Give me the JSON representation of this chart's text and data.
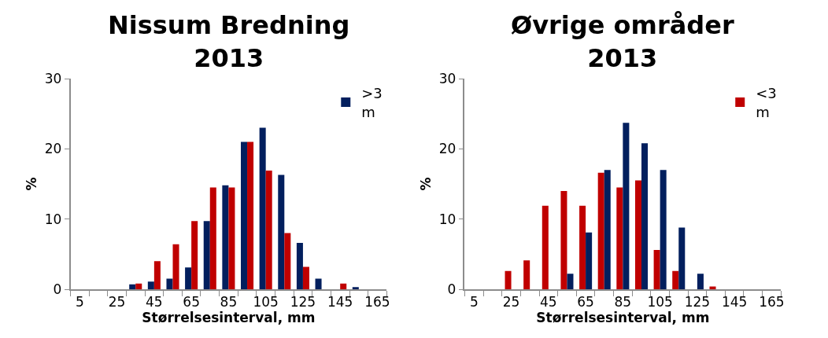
{
  "chart_data": [
    {
      "type": "bar",
      "title": "Nissum Bredning 2013",
      "xlabel": "Størrelsesinterval, mm",
      "ylabel": "%",
      "categories": [
        "5",
        null,
        "25",
        null,
        "45",
        null,
        "65",
        null,
        "85",
        null,
        "105",
        null,
        "125",
        null,
        "145",
        null,
        "165"
      ],
      "series": [
        {
          "name": ">3 m",
          "color": "#021f5e",
          "values": [
            0,
            0,
            0,
            0.7,
            1.1,
            1.5,
            3.1,
            9.7,
            14.8,
            21.0,
            23.0,
            16.3,
            6.6,
            1.5,
            0,
            0.3,
            0
          ]
        },
        {
          "color": "#c00000",
          "values": [
            0,
            0,
            0,
            0.8,
            4.0,
            6.4,
            9.7,
            14.5,
            14.5,
            21.0,
            16.9,
            8.0,
            3.2,
            0,
            0.8,
            0,
            0
          ]
        }
      ],
      "ylim": [
        0,
        30
      ],
      "yticks": [
        0,
        10,
        20,
        30
      ],
      "legend": "top right"
    },
    {
      "type": "bar",
      "title": "Øvrige områder 2013",
      "xlabel": "Størrelsesinterval, mm",
      "ylabel": "%",
      "categories": [
        "5",
        null,
        "25",
        null,
        "45",
        null,
        "65",
        null,
        "85",
        null,
        "105",
        null,
        "125",
        null,
        "145",
        null,
        "165"
      ],
      "series": [
        {
          "name": "<3 m",
          "color": "#c00000",
          "values": [
            0,
            0,
            2.6,
            4.1,
            11.9,
            14.0,
            11.9,
            16.6,
            14.5,
            15.5,
            5.6,
            2.6,
            0,
            0.4,
            0,
            0,
            0
          ]
        },
        {
          "color": "#021f5e",
          "values": [
            0,
            0,
            0,
            0,
            0,
            2.2,
            8.1,
            17.0,
            23.7,
            20.8,
            17.0,
            8.8,
            2.2,
            0,
            0,
            0,
            0
          ]
        }
      ],
      "ylim": [
        0,
        30
      ],
      "yticks": [
        0,
        10,
        20,
        30
      ],
      "legend": "top right"
    }
  ]
}
